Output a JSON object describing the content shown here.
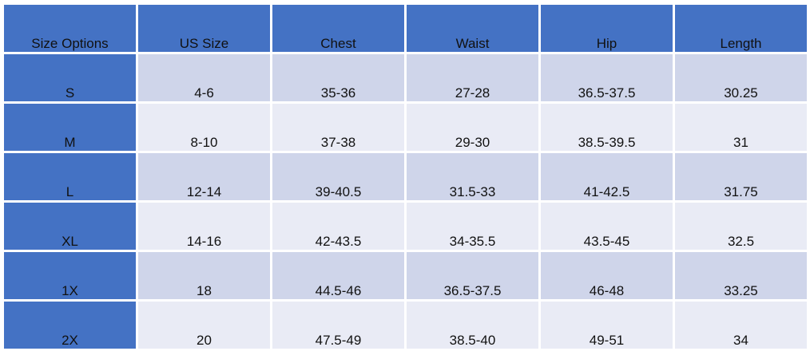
{
  "table": {
    "headers": [
      "Size Options",
      "US Size",
      "Chest",
      "Waist",
      "Hip",
      "Length"
    ],
    "rows": [
      [
        "S",
        "4-6",
        "35-36",
        "27-28",
        "36.5-37.5",
        "30.25"
      ],
      [
        "M",
        "8-10",
        "37-38",
        "29-30",
        "38.5-39.5",
        "31"
      ],
      [
        "L",
        "12-14",
        "39-40.5",
        "31.5-33",
        "41-42.5",
        "31.75"
      ],
      [
        "XL",
        "14-16",
        "42-43.5",
        "34-35.5",
        "43.5-45",
        "32.5"
      ],
      [
        "1X",
        "18",
        "44.5-46",
        "36.5-37.5",
        "46-48",
        "33.25"
      ],
      [
        "2X",
        "20",
        "47.5-49",
        "38.5-40",
        "49-51",
        "34"
      ]
    ]
  },
  "colors": {
    "header": "#4472c4",
    "band_dark": "#cfd5ea",
    "band_light": "#e9ebf5"
  }
}
